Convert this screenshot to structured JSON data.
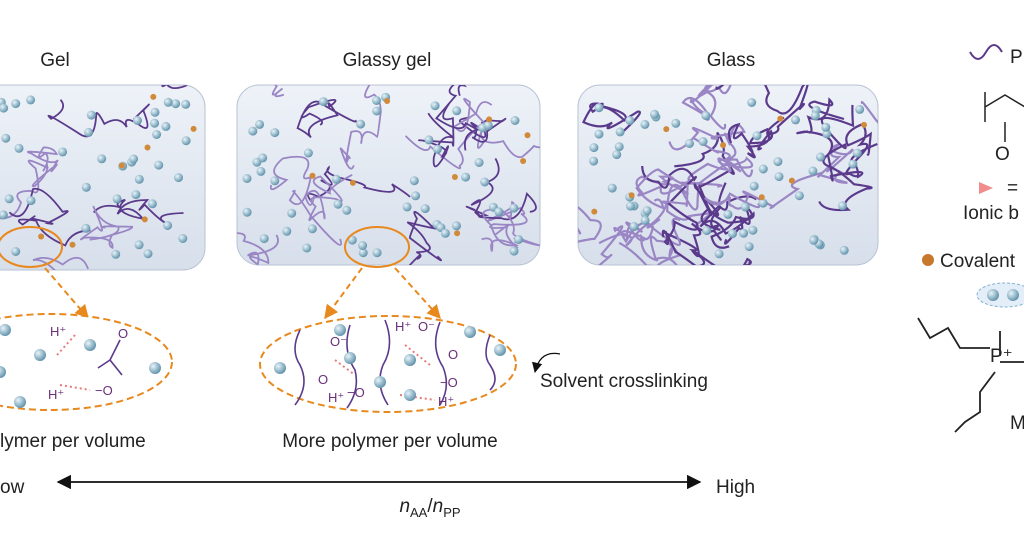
{
  "panels": [
    {
      "title": "Gel"
    },
    {
      "title": "Glassy gel"
    },
    {
      "title": "Glass"
    }
  ],
  "zoom_left": {
    "caption": "lymer per volume",
    "labels": [
      "H⁺",
      "H⁺",
      "−O",
      "O"
    ]
  },
  "zoom_middle": {
    "caption": "More polymer per volume",
    "labels": [
      "O⁻",
      "H⁺",
      "O⁻",
      "O",
      "O",
      "−O",
      "−O",
      "H⁺",
      "H⁺"
    ]
  },
  "annotation": "Solvent crosslinking",
  "axis": {
    "low": "ow",
    "high": "High",
    "label": {
      "n1": "n",
      "s1": "AA",
      "slash": "/",
      "n2": "n",
      "s2": "PP"
    }
  },
  "legend": {
    "polymer": "P",
    "oxygen": "O",
    "equals": "=",
    "ionic": "Ionic b",
    "covalent": "Covalent",
    "phosphonium": "P⁺",
    "other": "M"
  }
}
